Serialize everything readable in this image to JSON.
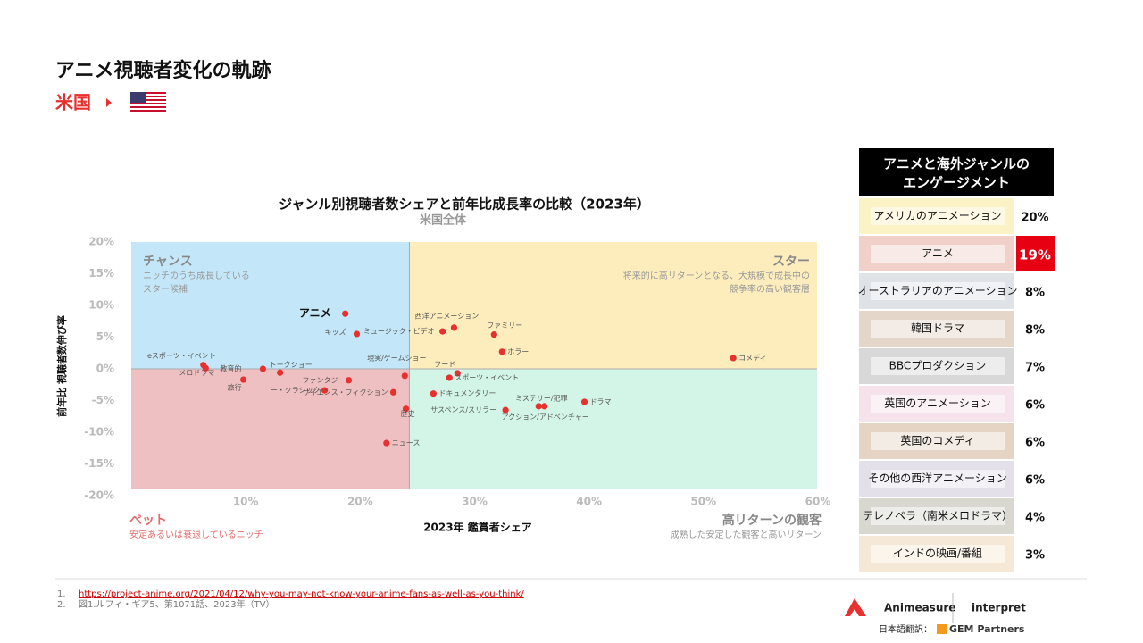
{
  "header": {
    "title": "アニメ視聴者変化の軌跡",
    "country": "米国"
  },
  "chart_data": {
    "type": "scatter",
    "title": "ジャンル別視聴者数シェアと前年比成長率の比較（2023年）",
    "subtitle": "米国全体",
    "x_label": "2023年 鑑賞者シェア",
    "y_label": "前年比 視聴者数伸び率",
    "color": "#e8312f",
    "xlim": [
      0,
      60
    ],
    "ylim": [
      -20,
      20
    ],
    "xticks": [
      {
        "value": 10,
        "label": "10%"
      },
      {
        "value": 20,
        "label": "20%"
      },
      {
        "value": 30,
        "label": "30%"
      },
      {
        "value": 40,
        "label": "40%"
      },
      {
        "value": 50,
        "label": "50%"
      },
      {
        "value": 60,
        "label": "60%"
      }
    ],
    "yticks": [
      {
        "value": 20,
        "label": "20%"
      },
      {
        "value": 15,
        "label": "15%"
      },
      {
        "value": 10,
        "label": "10%"
      },
      {
        "value": 5,
        "label": "5%"
      },
      {
        "value": 0,
        "label": "0%"
      },
      {
        "value": -5,
        "label": "-5%"
      },
      {
        "value": -10,
        "label": "-10%"
      },
      {
        "value": -15,
        "label": "-15%"
      },
      {
        "value": -20,
        "label": "-20%"
      }
    ],
    "quadrant_split": {
      "x": 24.3,
      "y": 0
    },
    "quadrants": [
      {
        "title": "チャンス",
        "lines": [
          "ニッチのうち成長している",
          "スター候補"
        ],
        "color": "#c3e7f8"
      },
      {
        "title": "スター",
        "lines": [
          "将来的に高リターンとなる、大規模で成長中の",
          "競争率の高い観客層"
        ],
        "color": "#fdedbd"
      },
      {
        "title": "ペット",
        "lines": [
          "安定あるいは衰退しているニッチ"
        ],
        "color": "#efc0c1"
      },
      {
        "title": "高リターンの観客",
        "lines": [
          "成熟した安定した観客と高いリターン"
        ],
        "color": "#d3f5e8"
      }
    ],
    "labels": [
      "アニメ",
      "キッズ",
      "西洋アニメーション",
      "ミュージック・ビデオ",
      "ファミリー",
      "ホラー",
      "コメディ",
      "eスポーツ・イベント",
      "メロドラマ",
      "教育的",
      "トークショー",
      "旅行",
      "ファンタジー",
      "ー・クラシック",
      "現実/ゲームショー",
      "フード",
      "スポーツ・イベント",
      "ドキュメンタリー",
      "サイエンス・フィクション",
      "歴史",
      "サスペンス/スリラー",
      "ミステリー/犯罪",
      "アクション/アドベンチャー",
      "ドラマ",
      "ニュース"
    ],
    "x": [
      18.7,
      19.7,
      28.2,
      27.2,
      31.7,
      32.4,
      52.6,
      6.3,
      6.5,
      11.5,
      13.0,
      9.8,
      19.0,
      16.9,
      23.9,
      28.5,
      27.8,
      26.4,
      22.9,
      24.0,
      32.7,
      35.6,
      36.1,
      39.6,
      22.3
    ],
    "y": [
      8.7,
      5.5,
      6.5,
      5.9,
      5.4,
      2.7,
      1.7,
      0.6,
      0.1,
      0,
      -0.6,
      -1.7,
      -1.8,
      -3.4,
      -1.1,
      -0.7,
      -1.4,
      -3.9,
      -3.7,
      -6.3,
      -6.5,
      -5.9,
      -5.9,
      -5.2,
      -11.7
    ]
  },
  "engagement": {
    "title": [
      "アニメと海外ジャンルの",
      "エンゲージメント"
    ],
    "highlight": 1,
    "rows": [
      [
        "アメリカのアニメーション",
        "20%"
      ],
      [
        "アニメ",
        "19%"
      ],
      [
        "オーストラリアのアニメーション",
        "8%"
      ],
      [
        "韓国ドラマ",
        "8%"
      ],
      [
        "BBCプロダクション",
        "7%"
      ],
      [
        "英国のアニメーション",
        "6%"
      ],
      [
        "英国のコメディ",
        "6%"
      ],
      [
        "その他の西洋アニメーション",
        "6%"
      ],
      [
        "テレノベラ（南米メロドラマ）",
        "4%"
      ],
      [
        "インドの映画/番組",
        "3%"
      ]
    ]
  },
  "footnotes": [
    {
      "num": "1.",
      "text": "https://project-anime.org/2021/04/12/why-you-may-not-know-your-anime-fans-as-well-as-you-think/"
    },
    {
      "num": "2.",
      "text": "図1.ルフィ・ギア5、第1071話、2023年（TV）"
    }
  ],
  "logos": {
    "animeasure": "Animeasure",
    "interpret": "interpret",
    "translation": "日本語翻訳：",
    "gem": "GEM Partners"
  }
}
